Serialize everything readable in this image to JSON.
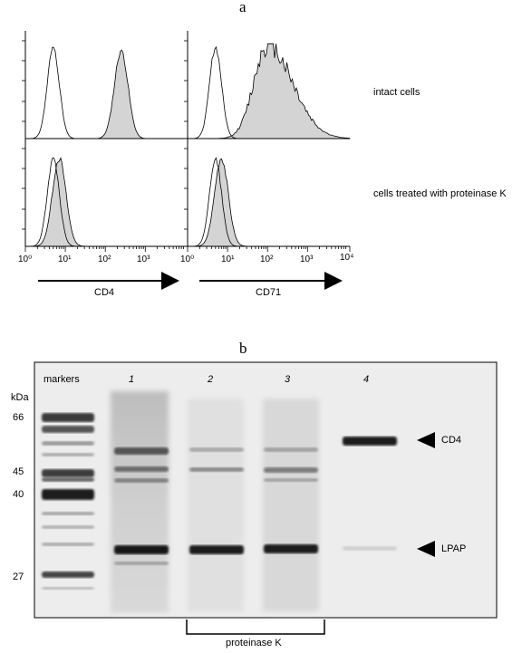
{
  "figure_a": {
    "letter": "a",
    "row_labels": [
      "intact cells",
      "cells treated with proteinase K"
    ],
    "x_tick_labels": [
      "10⁰",
      "10¹",
      "10²",
      "10³",
      "10⁴"
    ],
    "axis_labels": [
      "CD4",
      "CD71"
    ],
    "chart_data": [
      {
        "type": "area",
        "marker": "CD4",
        "condition": "intact cells",
        "x_scale": "log",
        "xlim": [
          1,
          10000
        ],
        "series": [
          {
            "role": "control (open)",
            "peak_x": 5
          },
          {
            "role": "stained (filled)",
            "peak_x": 250
          }
        ]
      },
      {
        "type": "area",
        "marker": "CD71",
        "condition": "intact cells",
        "x_scale": "log",
        "xlim": [
          1,
          10000
        ],
        "series": [
          {
            "role": "control (open)",
            "peak_x": 5
          },
          {
            "role": "stained (filled)",
            "peak_x": 100
          }
        ]
      },
      {
        "type": "area",
        "marker": "CD4",
        "condition": "cells treated with proteinase K",
        "x_scale": "log",
        "xlim": [
          1,
          10000
        ],
        "series": [
          {
            "role": "control (open)",
            "peak_x": 5
          },
          {
            "role": "stained (filled)",
            "peak_x": 7
          }
        ]
      },
      {
        "type": "area",
        "marker": "CD71",
        "condition": "cells treated with proteinase K",
        "x_scale": "log",
        "xlim": [
          1,
          10000
        ],
        "series": [
          {
            "role": "control (open)",
            "peak_x": 5
          },
          {
            "role": "stained (filled)",
            "peak_x": 7
          }
        ]
      }
    ]
  },
  "figure_b": {
    "letter": "b",
    "kda_label": "kDa",
    "lane_labels": [
      "markers",
      "1",
      "2",
      "3",
      "4"
    ],
    "mw_markers": [
      "66",
      "45",
      "40",
      "27"
    ],
    "band_labels": [
      "CD4",
      "LPAP"
    ],
    "bracket_label": "proteinase K"
  }
}
